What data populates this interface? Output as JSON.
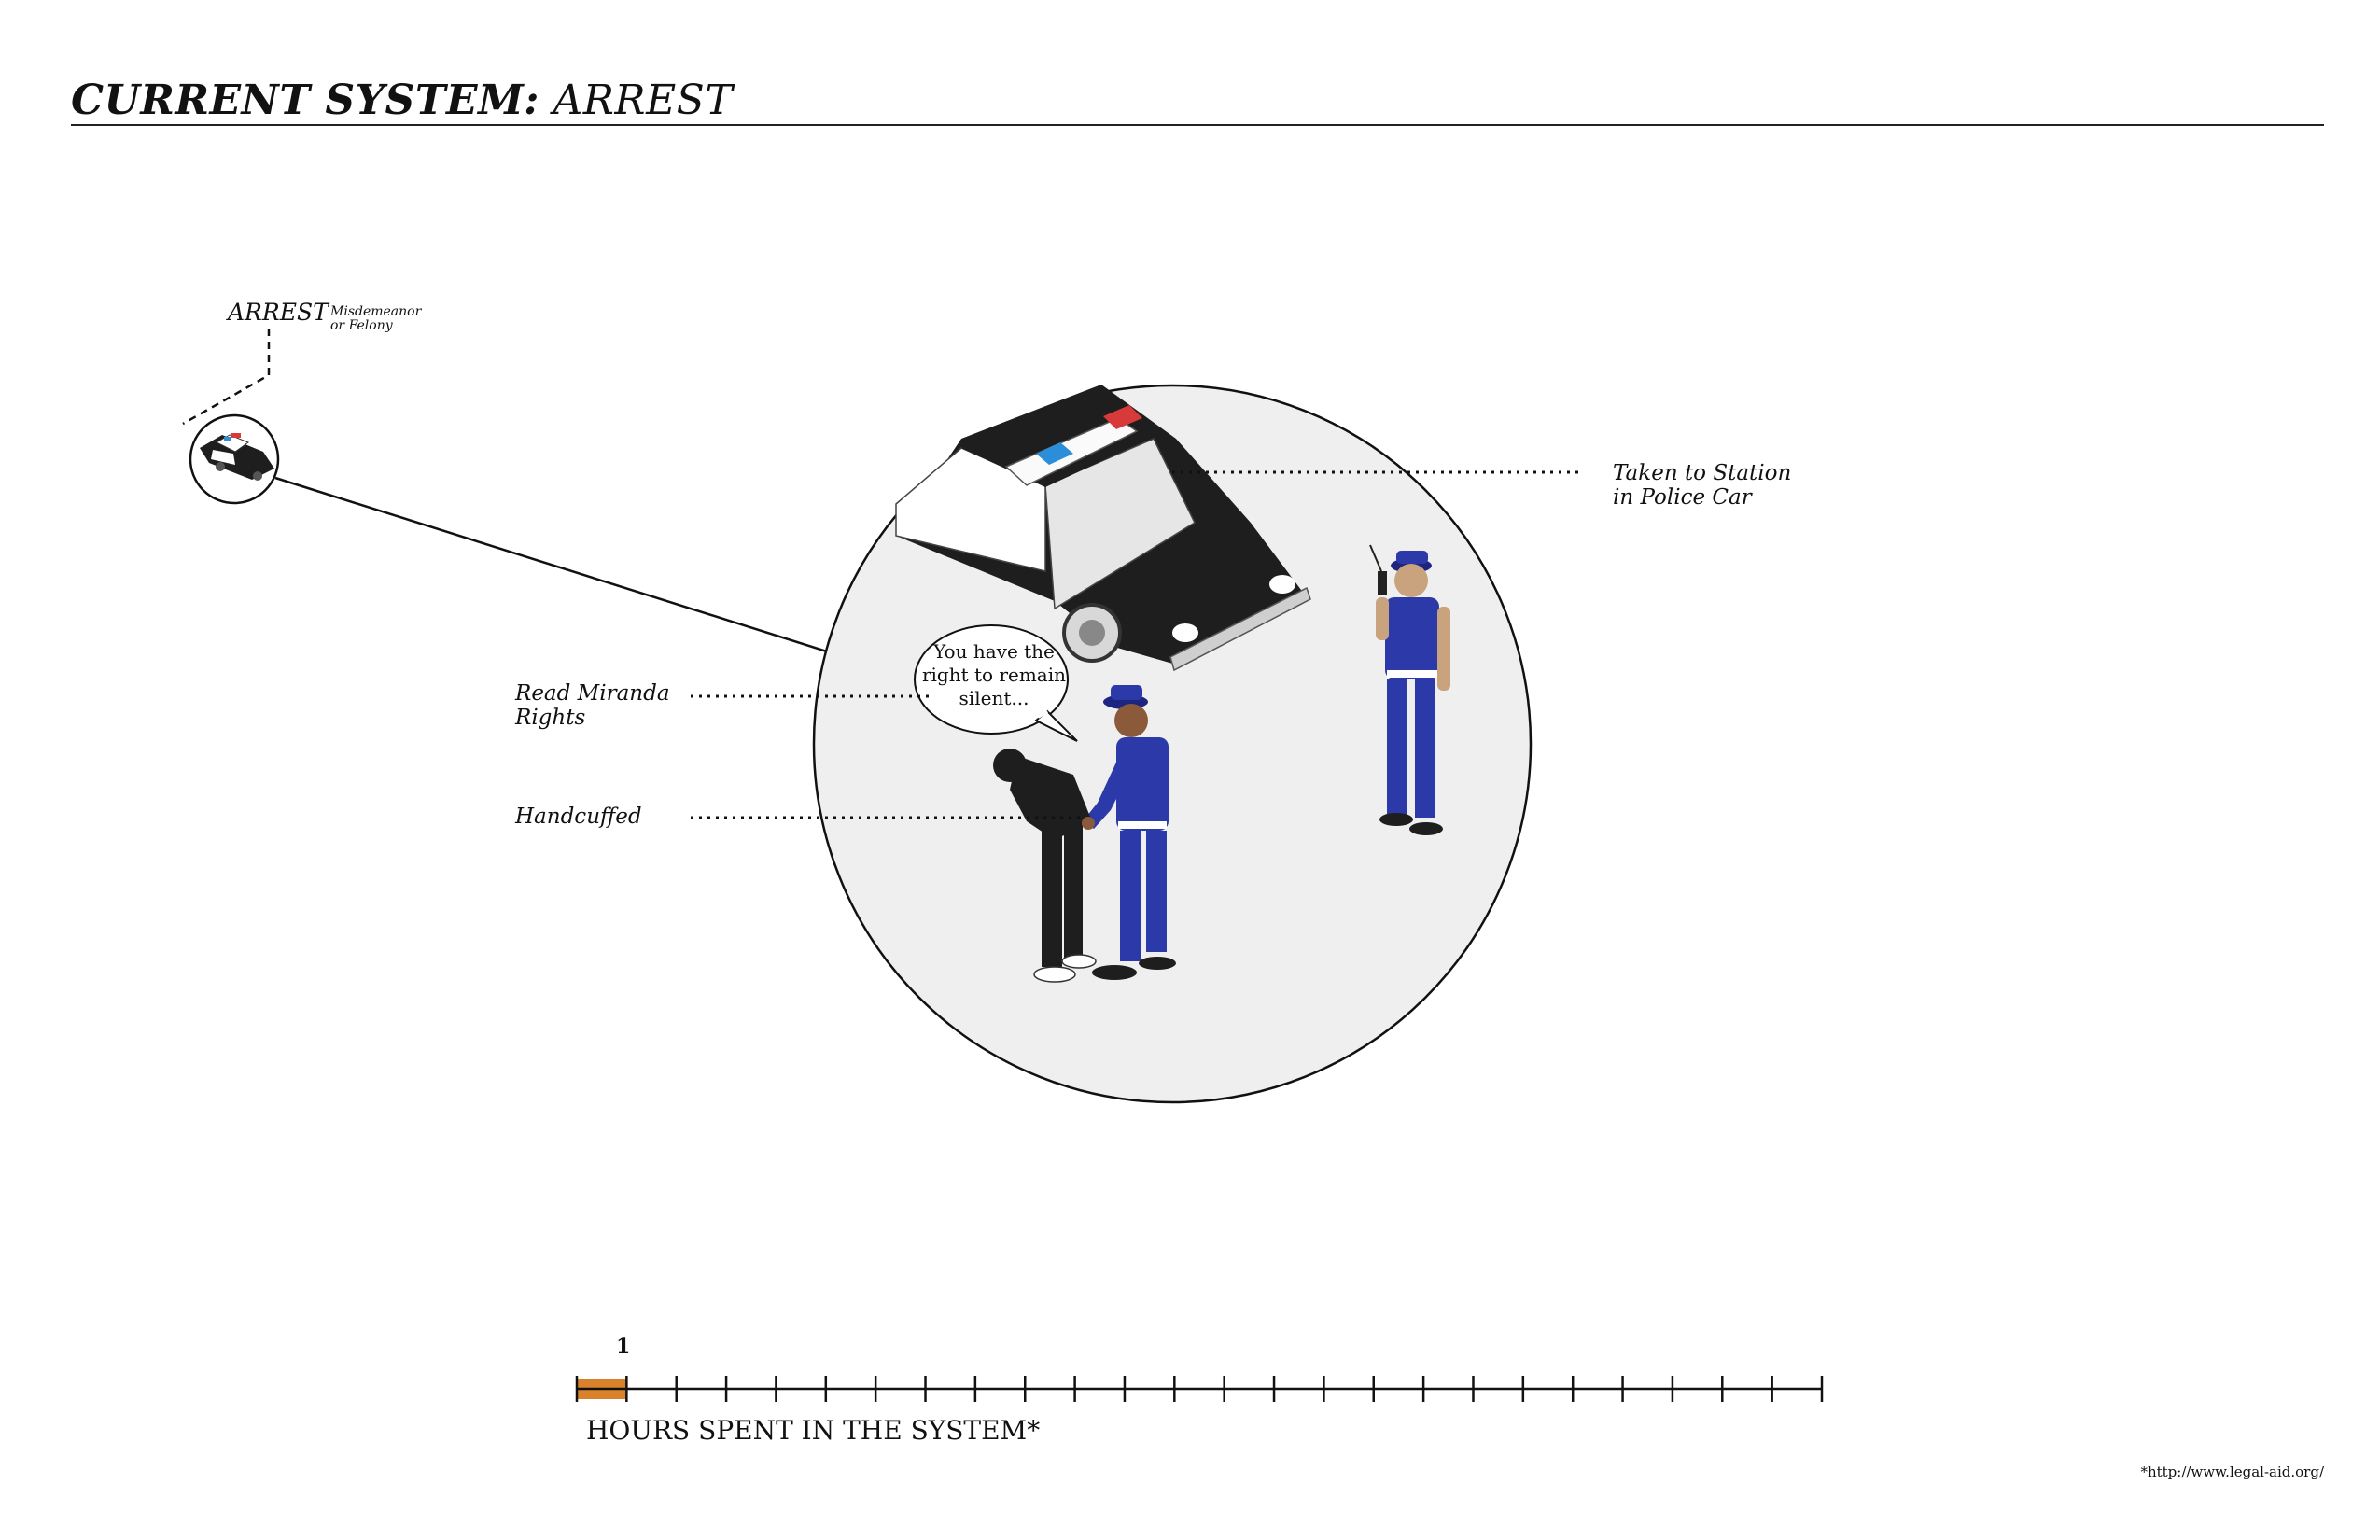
{
  "title": {
    "bold": "CURRENT SYSTEM:",
    "rest": "ARREST"
  },
  "start_node": {
    "label": "ARREST",
    "sublabel_line1": "Misdemeanor",
    "sublabel_line2": "or Felony",
    "icon": "police-car-icon"
  },
  "callouts": {
    "taken_line1": "Taken to Station",
    "taken_line2": "in Police Car",
    "miranda_line1": "Read Miranda",
    "miranda_line2": "Rights",
    "cuffed": "Handcuffed"
  },
  "speech_bubble": {
    "line1": "You have the",
    "line2": "right to remain",
    "line3": "silent..."
  },
  "timeline": {
    "axis_title": "HOURS SPENT IN THE SYSTEM*",
    "highlight_label": "1",
    "hours_highlighted": 1,
    "total_segments": 25,
    "highlight_color": "#d9822b"
  },
  "footnote": "*http://www.legal-aid.org/",
  "colors": {
    "uniform": "#2b3aa8",
    "uniform_dark": "#1c2680",
    "skin_officer": "#8a5a3a",
    "skin_officer2": "#c9a27e",
    "suspect": "#1e1e1e",
    "circle_fill": "#efefef",
    "light_red": "#d83a3a",
    "light_blue": "#2a8fd8"
  }
}
